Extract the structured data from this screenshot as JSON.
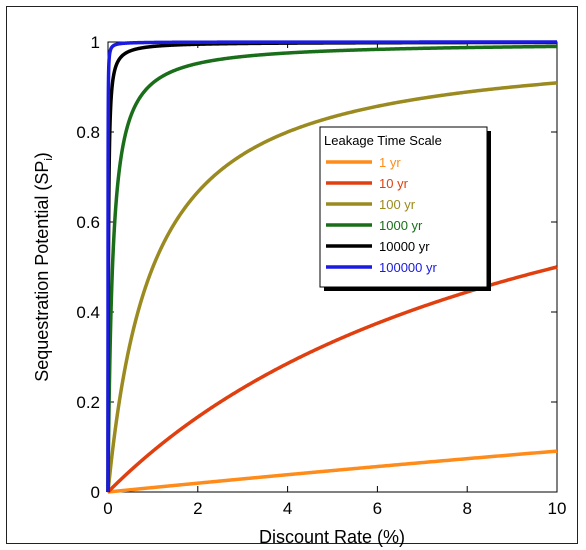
{
  "chart_data": {
    "type": "line",
    "title": "",
    "xlabel": "Discount Rate (%)",
    "ylabel_main": "Sequestration Potential (SP",
    "ylabel_sub": "i",
    "ylabel_close": ")",
    "xlim": [
      0,
      10
    ],
    "ylim": [
      0,
      1
    ],
    "xticks": [
      0,
      2,
      4,
      6,
      8,
      10
    ],
    "yticks": [
      0,
      0.2,
      0.4,
      0.6,
      0.8,
      1
    ],
    "xtick_labels": [
      "0",
      "2",
      "4",
      "6",
      "8",
      "10"
    ],
    "ytick_labels": [
      "0",
      "0.2",
      "0.4",
      "0.6",
      "0.8",
      "1"
    ],
    "legend_title": "Leakage Time Scale",
    "legend_position": "center-right",
    "grid": false,
    "series": [
      {
        "name": "1 yr",
        "color": "#ff8c1a",
        "timescale": 1
      },
      {
        "name": "10 yr",
        "color": "#e04010",
        "timescale": 10
      },
      {
        "name": "100 yr",
        "color": "#9a8a20",
        "timescale": 100
      },
      {
        "name": "1000 yr",
        "color": "#1a6e1a",
        "timescale": 1000
      },
      {
        "name": "10000 yr",
        "color": "#000000",
        "timescale": 10000
      },
      {
        "name": "100000 yr",
        "color": "#1a1ae0",
        "timescale": 100000
      }
    ]
  }
}
